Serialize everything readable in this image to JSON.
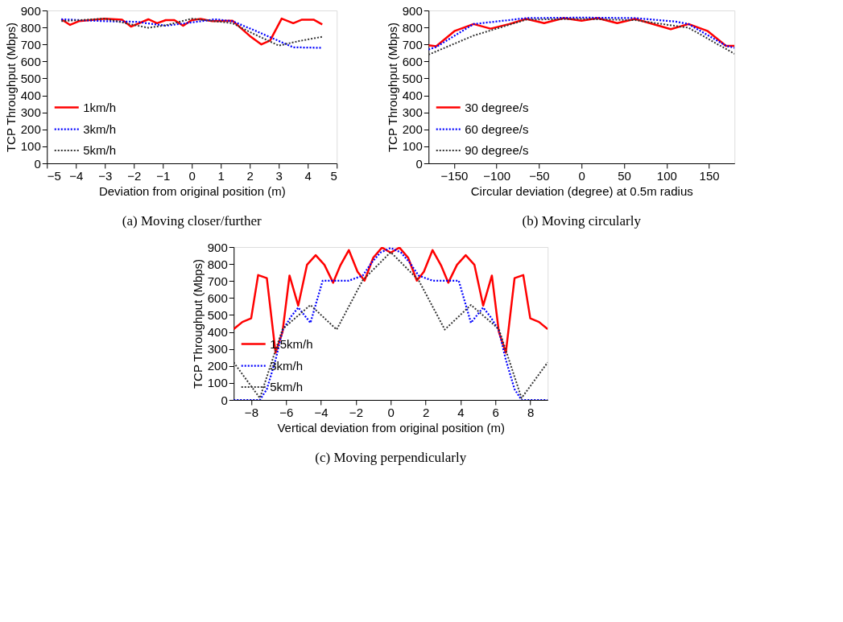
{
  "chart_data": [
    {
      "type": "line",
      "title": "(a) Moving closer/further",
      "xlabel": "Deviation from original position (m)",
      "ylabel": "TCP Throughput (Mbps)",
      "xlim": [
        -5,
        5
      ],
      "xticks": [
        -5,
        -4,
        -3,
        -2,
        -1,
        0,
        1,
        2,
        3,
        4,
        5
      ],
      "ylim": [
        0,
        900
      ],
      "yticks": [
        0,
        100,
        200,
        300,
        400,
        500,
        600,
        700,
        800,
        900
      ],
      "grid": false,
      "legend": "bottom left",
      "marker": "none",
      "series": [
        {
          "name": "1km/h",
          "color": "#ff0000",
          "line_style": "solid",
          "x": [
            -4.5,
            -4.2,
            -3.9,
            -3.0,
            -2.4,
            -2.1,
            -1.5,
            -1.2,
            -0.9,
            -0.6,
            -0.3,
            0.0,
            0.3,
            0.7,
            1.4,
            2.0,
            2.4,
            2.7,
            3.1,
            3.5,
            3.8,
            4.2,
            4.5
          ],
          "values": [
            848,
            815,
            837,
            852,
            845,
            805,
            848,
            825,
            843,
            843,
            810,
            843,
            850,
            837,
            840,
            750,
            700,
            723,
            852,
            825,
            846,
            846,
            818
          ]
        },
        {
          "name": "3km/h",
          "color": "#0000ff",
          "line_style": "dotted",
          "x": [
            -4.5,
            -3.0,
            -1.9,
            -0.9,
            -0.2,
            0.8,
            1.4,
            2.2,
            2.9,
            3.5,
            4.5
          ],
          "values": [
            848,
            837,
            833,
            810,
            825,
            848,
            837,
            780,
            728,
            683,
            680
          ]
        },
        {
          "name": "5km/h",
          "color": "#333333",
          "line_style": "dotted",
          "x": [
            -4.5,
            -3.0,
            -2.1,
            -1.5,
            -0.9,
            0.0,
            1.4,
            2.1,
            3.0,
            3.7,
            4.5
          ],
          "values": [
            837,
            852,
            818,
            798,
            813,
            852,
            825,
            765,
            693,
            720,
            745
          ]
        }
      ]
    },
    {
      "type": "line",
      "title": "(b) Moving circularly",
      "xlabel": "Circular deviation (degree) at 0.5m radius",
      "ylabel": "TCP Throughput (Mbps)",
      "xlim": [
        -180,
        180
      ],
      "xticks": [
        -150,
        -100,
        -50,
        0,
        50,
        100,
        150
      ],
      "ylim": [
        0,
        900
      ],
      "yticks": [
        0,
        100,
        200,
        300,
        400,
        500,
        600,
        700,
        800,
        900
      ],
      "grid": false,
      "legend": "bottom left",
      "marker": "none",
      "series": [
        {
          "name": "30 degree/s",
          "color": "#ff0000",
          "line_style": "solid",
          "x": [
            -180,
            -171,
            -149,
            -127,
            -107,
            -85,
            -65,
            -44,
            -21,
            0,
            19,
            42,
            63,
            105,
            126,
            148,
            170,
            180
          ],
          "values": [
            695,
            689,
            780,
            820,
            793,
            820,
            850,
            825,
            855,
            840,
            855,
            825,
            850,
            790,
            820,
            780,
            692,
            692
          ]
        },
        {
          "name": "60 degree/s",
          "color": "#0000ff",
          "line_style": "dotted",
          "x": [
            -180,
            -171,
            -127,
            -100,
            -65,
            0,
            63,
            110,
            126,
            170,
            180
          ],
          "values": [
            670,
            685,
            820,
            835,
            855,
            858,
            855,
            835,
            820,
            692,
            680
          ]
        },
        {
          "name": "90 degree/s",
          "color": "#333333",
          "line_style": "dotted",
          "x": [
            -180,
            -127,
            -65,
            0,
            63,
            126,
            180
          ],
          "values": [
            640,
            752,
            846,
            850,
            843,
            798,
            645
          ]
        }
      ]
    },
    {
      "type": "line",
      "title": "(c) Moving perpendicularly",
      "xlabel": "Vertical deviation from original position (m)",
      "ylabel": "TCP Throughput (Mbps)",
      "xlim": [
        -9,
        9
      ],
      "xticks": [
        -8,
        -6,
        -4,
        -2,
        0,
        2,
        4,
        6,
        8
      ],
      "ylim": [
        0,
        900
      ],
      "yticks": [
        0,
        100,
        200,
        300,
        400,
        500,
        600,
        700,
        800,
        900
      ],
      "grid": false,
      "legend": "bottom left",
      "marker": "none",
      "series": [
        {
          "name": "1.5km/h",
          "color": "#ff0000",
          "line_style": "solid",
          "x": [
            -9,
            -8.5,
            -8.0,
            -7.6,
            -7.1,
            -6.6,
            -6.2,
            -5.8,
            -5.3,
            -4.8,
            -4.3,
            -3.8,
            -3.3,
            -2.9,
            -2.4,
            -1.9,
            -1.5,
            -1.0,
            -0.5,
            0,
            0.5,
            1.0,
            1.5,
            1.9,
            2.4,
            2.9,
            3.3,
            3.8,
            4.3,
            4.8,
            5.3,
            5.8,
            6.2,
            6.6,
            7.1,
            7.6,
            8.0,
            8.5,
            9
          ],
          "values": [
            417,
            459,
            480,
            735,
            717,
            278,
            401,
            732,
            555,
            795,
            852,
            795,
            690,
            789,
            882,
            754,
            702,
            837,
            897,
            867,
            897,
            837,
            702,
            754,
            882,
            789,
            690,
            795,
            852,
            795,
            555,
            732,
            401,
            278,
            717,
            735,
            480,
            459,
            417
          ]
        },
        {
          "name": "3km/h",
          "color": "#0000ff",
          "line_style": "dotted",
          "x": [
            -9,
            -7.5,
            -7.1,
            -6.6,
            -6.2,
            -5.7,
            -5.3,
            -4.6,
            -3.9,
            -2.4,
            -1.6,
            -1.1,
            -0.6,
            0,
            0.6,
            1.1,
            1.6,
            2.4,
            3.9,
            4.6,
            5.3,
            5.7,
            6.2,
            6.6,
            7.1,
            7.5,
            9
          ],
          "values": [
            0,
            0,
            63,
            236,
            409,
            492,
            544,
            454,
            702,
            702,
            732,
            807,
            867,
            895,
            867,
            807,
            732,
            702,
            702,
            454,
            544,
            492,
            409,
            236,
            63,
            0,
            0
          ]
        },
        {
          "name": "5km/h",
          "color": "#333333",
          "line_style": "dotted",
          "x": [
            -9,
            -7.5,
            -6.2,
            -4.6,
            -3.1,
            -1.6,
            0,
            1.6,
            3.1,
            4.6,
            6.2,
            7.5,
            9
          ],
          "values": [
            221,
            11,
            417,
            559,
            414,
            705,
            870,
            705,
            414,
            559,
            417,
            11,
            221
          ]
        }
      ]
    }
  ]
}
